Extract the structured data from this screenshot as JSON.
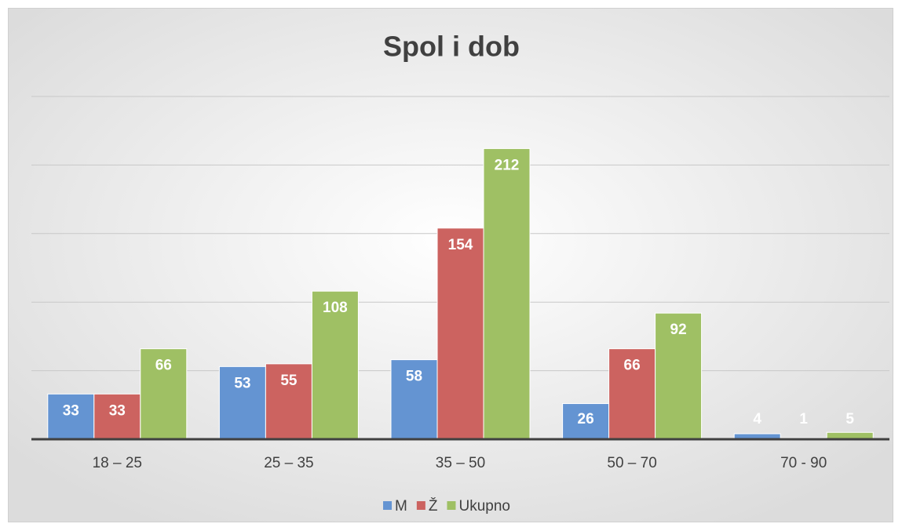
{
  "chart_data": {
    "type": "bar",
    "title": "Spol i dob",
    "categories": [
      "18 – 25",
      "25 – 35",
      "35 – 50",
      "50 – 70",
      "70 - 90"
    ],
    "series": [
      {
        "name": "M",
        "color": "#6494d2",
        "values": [
          33,
          53,
          58,
          26,
          4
        ]
      },
      {
        "name": "Ž",
        "color": "#cc6360",
        "values": [
          33,
          55,
          154,
          66,
          1
        ]
      },
      {
        "name": "Ukupno",
        "color": "#9fc064",
        "values": [
          66,
          108,
          212,
          92,
          5
        ]
      }
    ],
    "ylim": [
      0,
      250
    ],
    "yticks": [
      0,
      50,
      100,
      150,
      200,
      250
    ],
    "grid": true,
    "legend": "bottom"
  }
}
